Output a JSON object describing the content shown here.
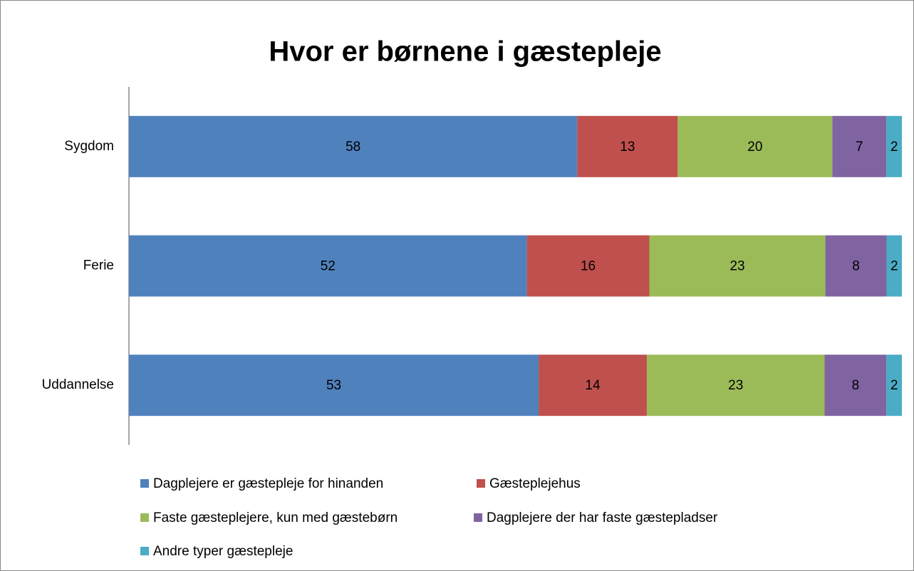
{
  "chart_data": {
    "type": "bar",
    "orientation": "horizontal",
    "stack": "percent",
    "title": "Hvor er børnene i gæstepleje",
    "categories": [
      "Sygdom",
      "Ferie",
      "Uddannelse"
    ],
    "series": [
      {
        "name": "Dagplejere er gæstepleje for hinanden",
        "color": "#4f81bd",
        "values": [
          58,
          52,
          53
        ]
      },
      {
        "name": "Gæsteplejehus",
        "color": "#c0504d",
        "values": [
          13,
          16,
          14
        ]
      },
      {
        "name": "Faste gæsteplejere, kun med gæstebørn",
        "color": "#9bbb59",
        "values": [
          20,
          23,
          23
        ]
      },
      {
        "name": "Dagplejere der har faste gæstepladser",
        "color": "#8064a2",
        "values": [
          7,
          8,
          8
        ]
      },
      {
        "name": "Andre typer gæstepleje",
        "color": "#4bacc6",
        "values": [
          2,
          2,
          2
        ]
      }
    ]
  }
}
